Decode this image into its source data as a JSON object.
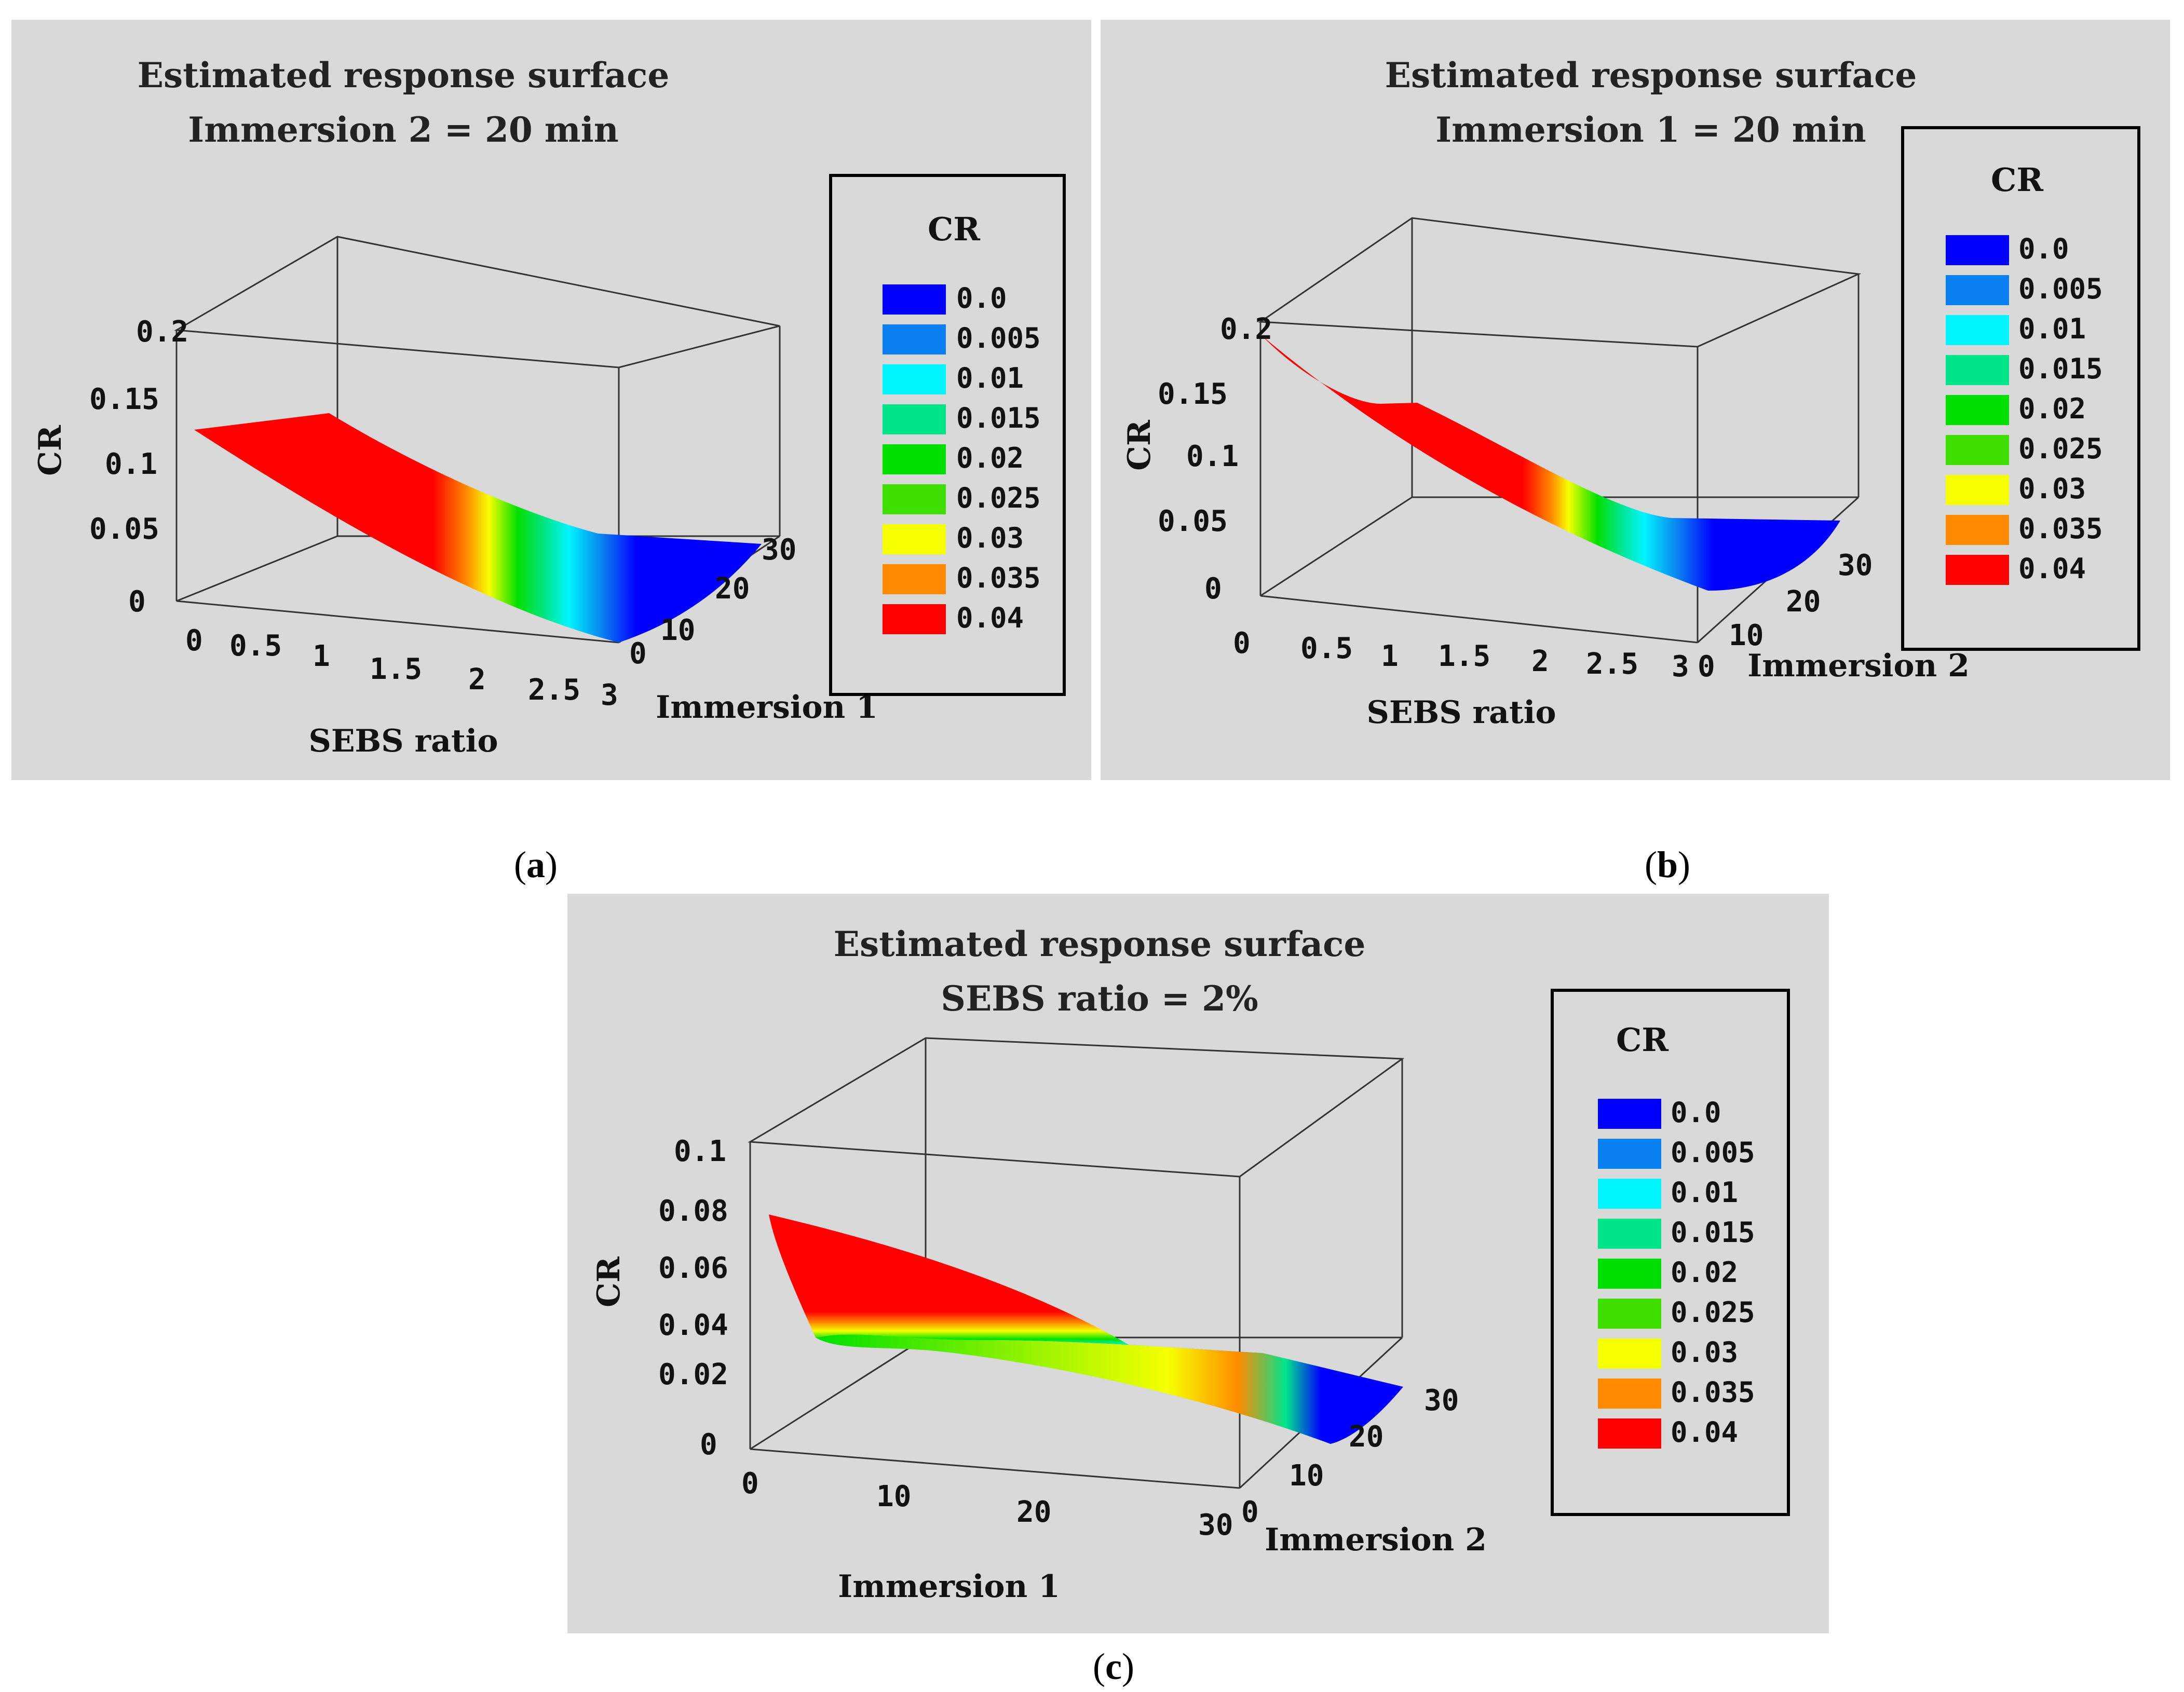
{
  "figure": {
    "caption_a": "a",
    "caption_b": "b",
    "caption_c": "c",
    "background": "#d9d9d9",
    "legend": {
      "title": "CR",
      "levels": [
        "0.0",
        "0.005",
        "0.01",
        "0.015",
        "0.02",
        "0.025",
        "0.03",
        "0.035",
        "0.04"
      ],
      "colors": [
        "#0000ff",
        "#0a7ff0",
        "#00f5ff",
        "#00e58c",
        "#00e000",
        "#3fe000",
        "#f6ff00",
        "#ff8a00",
        "#ff0000"
      ]
    }
  },
  "chart_data": [
    {
      "type": "surface",
      "panel": "a",
      "title_line1": "Estimated response surface",
      "title_line2": "Immersion 2 = 20 min",
      "xlabel": "SEBS ratio",
      "ylabel": "Immersion 1",
      "zlabel": "CR",
      "x_ticks": [
        "0",
        "0.5",
        "1",
        "1.5",
        "2",
        "2.5",
        "3"
      ],
      "y_ticks": [
        "0",
        "10",
        "20",
        "30"
      ],
      "z_ticks": [
        "0",
        "0.05",
        "0.1",
        "0.15",
        "0.2"
      ],
      "xlim": [
        0,
        3
      ],
      "ylim": [
        0,
        30
      ],
      "zlim": [
        0,
        0.2
      ],
      "x": [
        0,
        0.5,
        1,
        1.5,
        2,
        2.5,
        3
      ],
      "cr_profile": [
        0.13,
        0.1,
        0.07,
        0.045,
        0.02,
        0.005,
        0.0
      ]
    },
    {
      "type": "surface",
      "panel": "b",
      "title_line1": "Estimated response surface",
      "title_line2": "Immersion 1 = 20 min",
      "xlabel": "SEBS ratio",
      "ylabel": "Immersion 2",
      "zlabel": "CR",
      "x_ticks": [
        "0",
        "0.5",
        "1",
        "1.5",
        "2",
        "2.5",
        "3"
      ],
      "y_ticks": [
        "0",
        "10",
        "20",
        "30"
      ],
      "z_ticks": [
        "0",
        "0.05",
        "0.1",
        "0.15",
        "0.2"
      ],
      "xlim": [
        0,
        3
      ],
      "ylim": [
        0,
        30
      ],
      "zlim": [
        0,
        0.2
      ],
      "x": [
        0,
        0.5,
        1,
        1.5,
        2,
        2.5,
        3
      ],
      "cr_profile": [
        0.19,
        0.14,
        0.1,
        0.06,
        0.025,
        0.005,
        0.0
      ]
    },
    {
      "type": "surface",
      "panel": "c",
      "title_line1": "Estimated response surface",
      "title_line2": "SEBS ratio = 2%",
      "xlabel": "Immersion 1",
      "ylabel": "Immersion 2",
      "zlabel": "CR",
      "x_ticks": [
        "0",
        "10",
        "20",
        "30"
      ],
      "y_ticks": [
        "0",
        "10",
        "20",
        "30"
      ],
      "z_ticks": [
        "0",
        "0.02",
        "0.04",
        "0.06",
        "0.08",
        "0.1"
      ],
      "xlim": [
        0,
        30
      ],
      "ylim": [
        0,
        30
      ],
      "zlim": [
        0,
        0.1
      ],
      "x": [
        0,
        10,
        20,
        30
      ],
      "cr_profile": [
        0.078,
        0.05,
        0.025,
        0.0
      ]
    }
  ]
}
